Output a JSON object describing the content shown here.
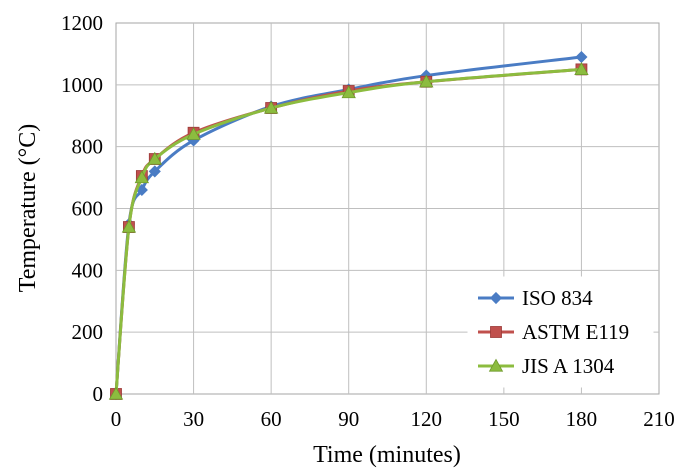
{
  "chart_data": {
    "type": "line",
    "xlabel": "Time (minutes)",
    "ylabel": "Temperature (°C)",
    "xlim": [
      0,
      210
    ],
    "ylim": [
      0,
      1200
    ],
    "x_ticks": [
      0,
      30,
      60,
      90,
      120,
      150,
      180,
      210
    ],
    "y_ticks": [
      0,
      200,
      400,
      600,
      800,
      1000,
      1200
    ],
    "grid": true,
    "legend_position": "bottom-right",
    "series": [
      {
        "name": "ISO 834",
        "color": "#4a7cc4",
        "marker": "diamond",
        "x": [
          0,
          5,
          10,
          15,
          30,
          60,
          90,
          120,
          180
        ],
        "y": [
          0,
          550,
          660,
          720,
          820,
          930,
          985,
          1030,
          1090
        ]
      },
      {
        "name": "ASTM E119",
        "color": "#c0504d",
        "marker": "square",
        "x": [
          0,
          5,
          10,
          15,
          30,
          60,
          90,
          120,
          180
        ],
        "y": [
          0,
          540,
          705,
          760,
          845,
          925,
          980,
          1010,
          1050
        ]
      },
      {
        "name": "JIS A 1304",
        "color": "#8cbc3f",
        "marker": "triangle",
        "x": [
          0,
          5,
          10,
          15,
          30,
          60,
          90,
          120,
          180
        ],
        "y": [
          0,
          540,
          700,
          760,
          840,
          925,
          975,
          1010,
          1050
        ]
      }
    ]
  }
}
